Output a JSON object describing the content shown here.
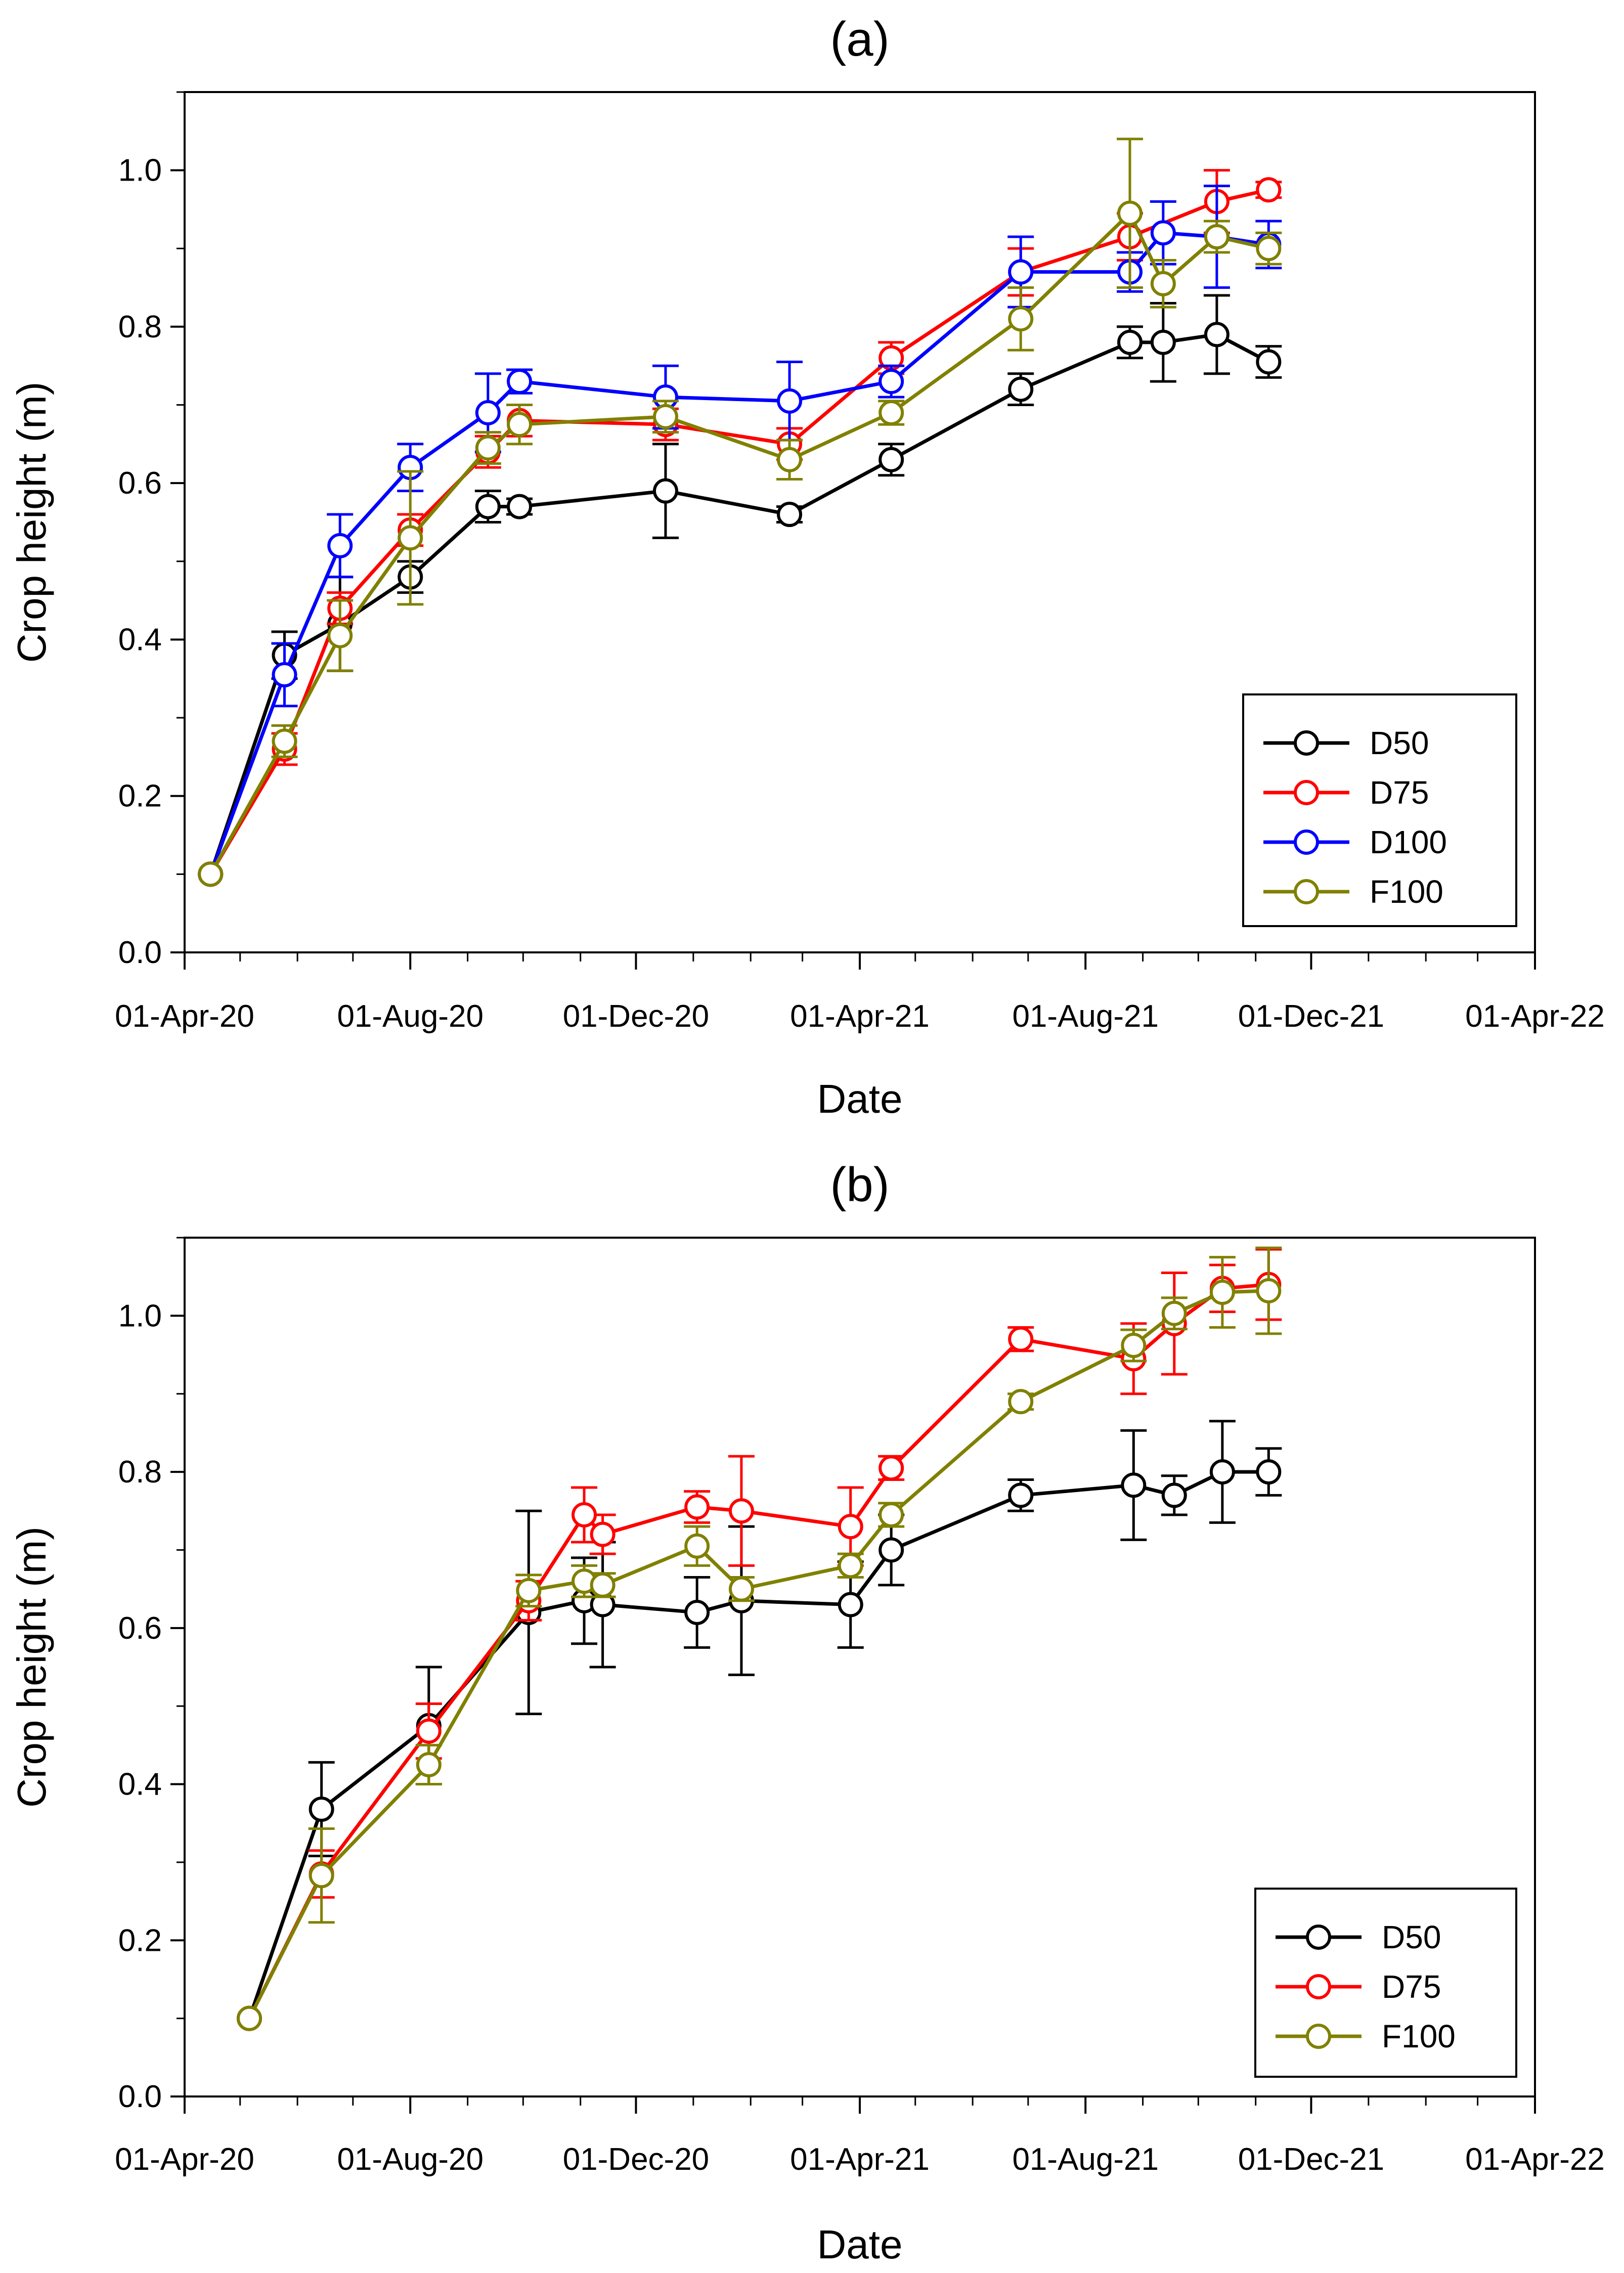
{
  "chart_data": [
    {
      "id": "a",
      "type": "line",
      "title": "(a)",
      "xlabel": "Date",
      "ylabel": "Crop height (m)",
      "ylim": [
        0,
        1.1
      ],
      "xlim": [
        "2020-04-01",
        "2022-04-01"
      ],
      "yticks": [
        "0.0",
        "0.2",
        "0.4",
        "0.6",
        "0.8",
        "1.0"
      ],
      "xticks": [
        "01-Apr-20",
        "01-Aug-20",
        "01-Dec-20",
        "01-Apr-21",
        "01-Aug-21",
        "01-Dec-21",
        "01-Apr-22"
      ],
      "legend_position": "bottom-right",
      "series": [
        {
          "name": "D50",
          "color": "#000000",
          "points": [
            {
              "date": "2020-04-15",
              "y": 0.1,
              "err": 0.0
            },
            {
              "date": "2020-05-25",
              "y": 0.38,
              "err": 0.03
            },
            {
              "date": "2020-06-24",
              "y": 0.42,
              "err": 0.06
            },
            {
              "date": "2020-08-01",
              "y": 0.48,
              "err": 0.02
            },
            {
              "date": "2020-09-12",
              "y": 0.57,
              "err": 0.02
            },
            {
              "date": "2020-09-29",
              "y": 0.57,
              "err": 0.01
            },
            {
              "date": "2020-12-17",
              "y": 0.59,
              "err": 0.06
            },
            {
              "date": "2021-02-22",
              "y": 0.56,
              "err": 0.01
            },
            {
              "date": "2021-04-18",
              "y": 0.63,
              "err": 0.02
            },
            {
              "date": "2021-06-27",
              "y": 0.72,
              "err": 0.02
            },
            {
              "date": "2021-08-25",
              "y": 0.78,
              "err": 0.02
            },
            {
              "date": "2021-09-12",
              "y": 0.78,
              "err": 0.05
            },
            {
              "date": "2021-10-11",
              "y": 0.79,
              "err": 0.05
            },
            {
              "date": "2021-11-08",
              "y": 0.755,
              "err": 0.02
            }
          ]
        },
        {
          "name": "D75",
          "color": "#ff0000",
          "points": [
            {
              "date": "2020-04-15",
              "y": 0.1,
              "err": 0.0
            },
            {
              "date": "2020-05-25",
              "y": 0.26,
              "err": 0.02
            },
            {
              "date": "2020-06-24",
              "y": 0.44,
              "err": 0.02
            },
            {
              "date": "2020-08-01",
              "y": 0.54,
              "err": 0.02
            },
            {
              "date": "2020-09-12",
              "y": 0.64,
              "err": 0.02
            },
            {
              "date": "2020-09-29",
              "y": 0.68,
              "err": 0.02
            },
            {
              "date": "2020-12-17",
              "y": 0.675,
              "err": 0.02
            },
            {
              "date": "2021-02-22",
              "y": 0.65,
              "err": 0.02
            },
            {
              "date": "2021-04-18",
              "y": 0.76,
              "err": 0.02
            },
            {
              "date": "2021-06-27",
              "y": 0.87,
              "err": 0.03
            },
            {
              "date": "2021-08-25",
              "y": 0.915,
              "err": 0.03
            },
            {
              "date": "2021-10-11",
              "y": 0.96,
              "err": 0.04
            },
            {
              "date": "2021-11-08",
              "y": 0.975,
              "err": 0.01
            }
          ]
        },
        {
          "name": "D100",
          "color": "#0000ff",
          "points": [
            {
              "date": "2020-04-15",
              "y": 0.1,
              "err": 0.0
            },
            {
              "date": "2020-05-25",
              "y": 0.355,
              "err": 0.04
            },
            {
              "date": "2020-06-24",
              "y": 0.52,
              "err": 0.04
            },
            {
              "date": "2020-08-01",
              "y": 0.62,
              "err": 0.03
            },
            {
              "date": "2020-09-12",
              "y": 0.69,
              "err": 0.05
            },
            {
              "date": "2020-09-29",
              "y": 0.73,
              "err": 0.015
            },
            {
              "date": "2020-12-17",
              "y": 0.71,
              "err": 0.04
            },
            {
              "date": "2021-02-22",
              "y": 0.705,
              "err": 0.05
            },
            {
              "date": "2021-04-18",
              "y": 0.73,
              "err": 0.02
            },
            {
              "date": "2021-06-27",
              "y": 0.87,
              "err": 0.045
            },
            {
              "date": "2021-08-25",
              "y": 0.87,
              "err": 0.025
            },
            {
              "date": "2021-09-12",
              "y": 0.92,
              "err": 0.04
            },
            {
              "date": "2021-10-11",
              "y": 0.915,
              "err": 0.065
            },
            {
              "date": "2021-11-08",
              "y": 0.905,
              "err": 0.03
            }
          ]
        },
        {
          "name": "F100",
          "color": "#808000",
          "points": [
            {
              "date": "2020-04-15",
              "y": 0.1,
              "err": 0.0
            },
            {
              "date": "2020-05-25",
              "y": 0.27,
              "err": 0.02
            },
            {
              "date": "2020-06-24",
              "y": 0.405,
              "err": 0.045
            },
            {
              "date": "2020-08-01",
              "y": 0.53,
              "err": 0.085
            },
            {
              "date": "2020-09-12",
              "y": 0.645,
              "err": 0.02
            },
            {
              "date": "2020-09-29",
              "y": 0.675,
              "err": 0.025
            },
            {
              "date": "2020-12-17",
              "y": 0.685,
              "err": 0.02
            },
            {
              "date": "2021-02-22",
              "y": 0.63,
              "err": 0.025
            },
            {
              "date": "2021-04-18",
              "y": 0.69,
              "err": 0.015
            },
            {
              "date": "2021-06-27",
              "y": 0.81,
              "err": 0.04
            },
            {
              "date": "2021-08-25",
              "y": 0.945,
              "err": 0.095
            },
            {
              "date": "2021-09-12",
              "y": 0.855,
              "err": 0.03
            },
            {
              "date": "2021-10-11",
              "y": 0.915,
              "err": 0.02
            },
            {
              "date": "2021-11-08",
              "y": 0.9,
              "err": 0.02
            }
          ]
        }
      ]
    },
    {
      "id": "b",
      "type": "line",
      "title": "(b)",
      "xlabel": "Date",
      "ylabel": "Crop height (m)",
      "ylim": [
        0,
        1.1
      ],
      "xlim": [
        "2020-04-01",
        "2022-04-01"
      ],
      "yticks": [
        "0.0",
        "0.2",
        "0.4",
        "0.6",
        "0.8",
        "1.0"
      ],
      "xticks": [
        "01-Apr-20",
        "01-Aug-20",
        "01-Dec-20",
        "01-Apr-21",
        "01-Aug-21",
        "01-Dec-21",
        "01-Apr-22"
      ],
      "legend_position": "bottom-right",
      "series": [
        {
          "name": "D50",
          "color": "#000000",
          "points": [
            {
              "date": "2020-05-06",
              "y": 0.1,
              "err": 0.0
            },
            {
              "date": "2020-06-14",
              "y": 0.368,
              "err": 0.06
            },
            {
              "date": "2020-08-11",
              "y": 0.475,
              "err": 0.075
            },
            {
              "date": "2020-10-04",
              "y": 0.62,
              "err": 0.13
            },
            {
              "date": "2020-11-03",
              "y": 0.635,
              "err": 0.055
            },
            {
              "date": "2020-11-13",
              "y": 0.63,
              "err": 0.08
            },
            {
              "date": "2021-01-03",
              "y": 0.62,
              "err": 0.045
            },
            {
              "date": "2021-01-27",
              "y": 0.635,
              "err": 0.095
            },
            {
              "date": "2021-03-27",
              "y": 0.63,
              "err": 0.055
            },
            {
              "date": "2021-04-18",
              "y": 0.7,
              "err": 0.045
            },
            {
              "date": "2021-06-27",
              "y": 0.77,
              "err": 0.02
            },
            {
              "date": "2021-08-27",
              "y": 0.783,
              "err": 0.07
            },
            {
              "date": "2021-09-18",
              "y": 0.77,
              "err": 0.025
            },
            {
              "date": "2021-10-14",
              "y": 0.8,
              "err": 0.065
            },
            {
              "date": "2021-11-08",
              "y": 0.8,
              "err": 0.03
            }
          ]
        },
        {
          "name": "D75",
          "color": "#ff0000",
          "points": [
            {
              "date": "2020-05-06",
              "y": 0.1,
              "err": 0.0
            },
            {
              "date": "2020-06-14",
              "y": 0.285,
              "err": 0.03
            },
            {
              "date": "2020-08-11",
              "y": 0.468,
              "err": 0.035
            },
            {
              "date": "2020-10-04",
              "y": 0.635,
              "err": 0.025
            },
            {
              "date": "2020-11-03",
              "y": 0.745,
              "err": 0.035
            },
            {
              "date": "2020-11-13",
              "y": 0.72,
              "err": 0.025
            },
            {
              "date": "2021-01-03",
              "y": 0.755,
              "err": 0.02
            },
            {
              "date": "2021-01-27",
              "y": 0.75,
              "err": 0.07
            },
            {
              "date": "2021-03-27",
              "y": 0.73,
              "err": 0.05
            },
            {
              "date": "2021-04-18",
              "y": 0.805,
              "err": 0.015
            },
            {
              "date": "2021-06-27",
              "y": 0.97,
              "err": 0.015
            },
            {
              "date": "2021-08-27",
              "y": 0.945,
              "err": 0.045
            },
            {
              "date": "2021-09-18",
              "y": 0.99,
              "err": 0.065
            },
            {
              "date": "2021-10-14",
              "y": 1.035,
              "err": 0.03
            },
            {
              "date": "2021-11-08",
              "y": 1.04,
              "err": 0.045
            }
          ]
        },
        {
          "name": "F100",
          "color": "#808000",
          "points": [
            {
              "date": "2020-05-06",
              "y": 0.1,
              "err": 0.0
            },
            {
              "date": "2020-06-14",
              "y": 0.283,
              "err": 0.06
            },
            {
              "date": "2020-08-11",
              "y": 0.425,
              "err": 0.025
            },
            {
              "date": "2020-10-04",
              "y": 0.648,
              "err": 0.02
            },
            {
              "date": "2020-11-03",
              "y": 0.66,
              "err": 0.02
            },
            {
              "date": "2020-11-13",
              "y": 0.655,
              "err": 0.015
            },
            {
              "date": "2021-01-03",
              "y": 0.705,
              "err": 0.025
            },
            {
              "date": "2021-01-27",
              "y": 0.65,
              "err": 0.015
            },
            {
              "date": "2021-03-27",
              "y": 0.68,
              "err": 0.015
            },
            {
              "date": "2021-04-18",
              "y": 0.745,
              "err": 0.015
            },
            {
              "date": "2021-06-27",
              "y": 0.89,
              "err": 0.01
            },
            {
              "date": "2021-08-27",
              "y": 0.962,
              "err": 0.02
            },
            {
              "date": "2021-09-18",
              "y": 1.003,
              "err": 0.02
            },
            {
              "date": "2021-10-14",
              "y": 1.03,
              "err": 0.045
            },
            {
              "date": "2021-11-08",
              "y": 1.032,
              "err": 0.055
            }
          ]
        }
      ]
    }
  ]
}
